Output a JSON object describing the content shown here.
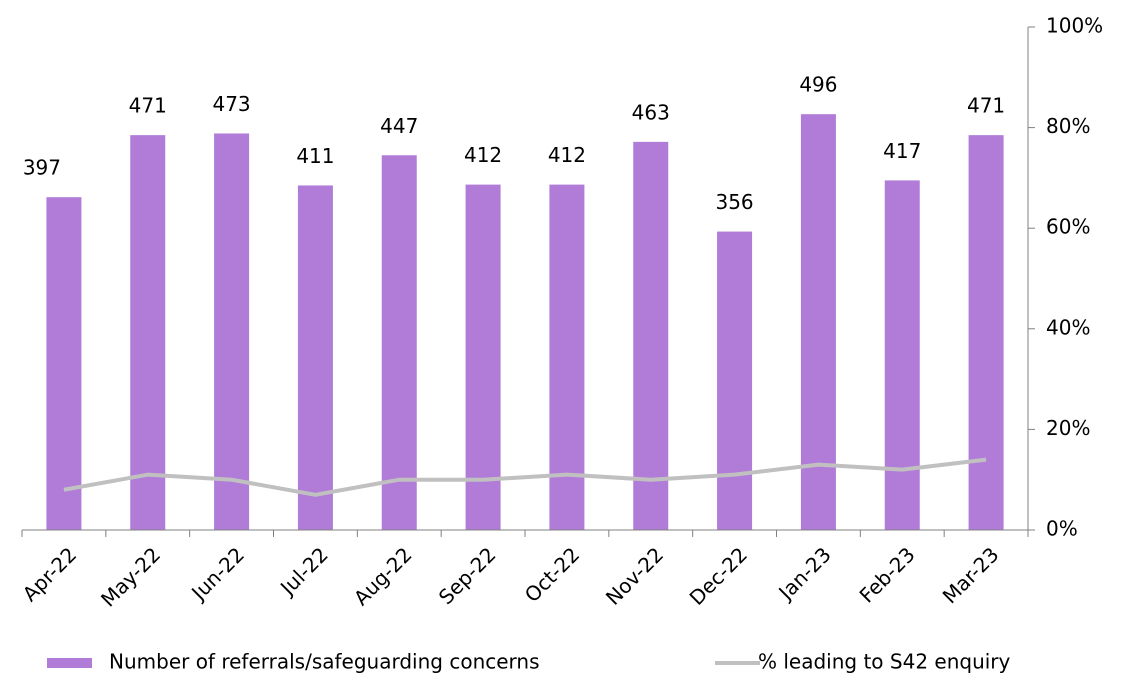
{
  "chart_data": {
    "type": "bar-line",
    "categories": [
      "Apr-22",
      "May-22",
      "Jun-22",
      "Jul-22",
      "Aug-22",
      "Sep-22",
      "Oct-22",
      "Nov-22",
      "Dec-22",
      "Jan-23",
      "Feb-23",
      "Mar-23"
    ],
    "series": [
      {
        "name": "Number of referrals/safeguarding concerns",
        "color": "#b07cd8",
        "type": "bar",
        "values": [
          397,
          471,
          473,
          411,
          447,
          412,
          412,
          463,
          356,
          496,
          417,
          471
        ]
      },
      {
        "name": "% leading to S42 enquiry",
        "color": "#c0c0c0",
        "type": "line",
        "axis": "y2",
        "values": [
          8,
          11,
          10,
          7,
          10,
          10,
          11,
          10,
          11,
          13,
          12,
          14
        ]
      }
    ],
    "ylim": [
      0,
      600
    ],
    "y2lim": [
      0,
      100
    ],
    "y2ticks": [
      {
        "value": 0,
        "label": "0%"
      },
      {
        "value": 20,
        "label": "20%"
      },
      {
        "value": 40,
        "label": "40%"
      },
      {
        "value": 60,
        "label": "60%"
      },
      {
        "value": 80,
        "label": "80%"
      },
      {
        "value": 100,
        "label": "100%"
      }
    ],
    "legend": "bottom"
  }
}
